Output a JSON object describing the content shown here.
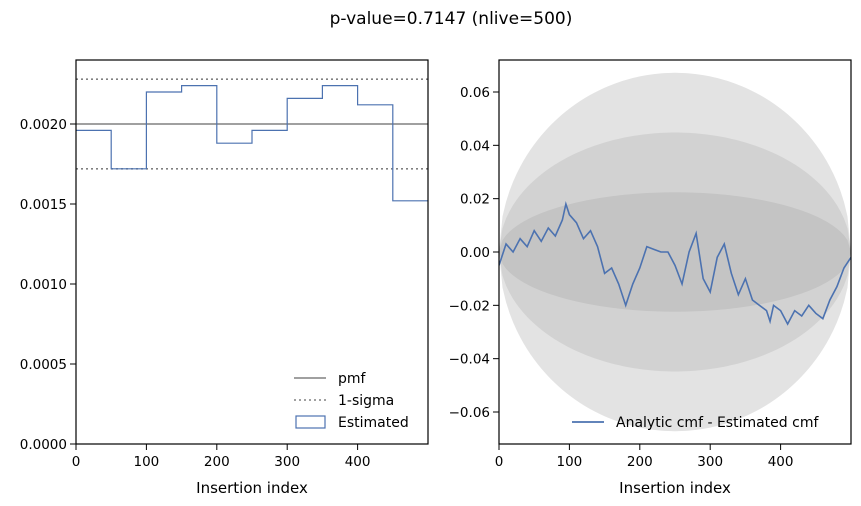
{
  "figure": {
    "suptitle": "p-value=0.7147 (nlive=500)"
  },
  "colors": {
    "estimated": "#4c72b0",
    "pmf": "#808080",
    "band_outer": "#e3e3e3",
    "band_mid": "#d2d2d2",
    "band_inner": "#c4c4c4"
  },
  "chart_data": [
    {
      "type": "line",
      "panel": "left",
      "xlabel": "Insertion index",
      "ylabel": "",
      "xlim": [
        0,
        500
      ],
      "ylim": [
        0,
        0.0024
      ],
      "xticks": [
        0,
        100,
        200,
        300,
        400
      ],
      "xtick_labels": [
        "0",
        "100",
        "200",
        "300",
        "400"
      ],
      "yticks": [
        0,
        0.0005,
        0.001,
        0.0015,
        0.002
      ],
      "ytick_labels": [
        "0.0000",
        "0.0005",
        "0.0010",
        "0.0015",
        "0.0020"
      ],
      "grid": false,
      "legend_position": "lower-right",
      "pmf": {
        "name": "pmf",
        "value": 0.002
      },
      "sigma": {
        "name": "1-sigma",
        "values": [
          0.00172,
          0.00228
        ]
      },
      "estimated": {
        "name": "Estimated",
        "bin_edges": [
          0,
          50,
          100,
          150,
          200,
          250,
          300,
          350,
          400,
          450,
          500
        ],
        "values": [
          0.00196,
          0.00172,
          0.0022,
          0.00224,
          0.00188,
          0.00196,
          0.00216,
          0.00224,
          0.00212,
          0.00152
        ]
      }
    },
    {
      "type": "line",
      "panel": "right",
      "xlabel": "Insertion index",
      "ylabel": "",
      "xlim": [
        0,
        500
      ],
      "ylim": [
        -0.072,
        0.072
      ],
      "xticks": [
        0,
        100,
        200,
        300,
        400
      ],
      "xtick_labels": [
        "0",
        "100",
        "200",
        "300",
        "400"
      ],
      "yticks": [
        -0.06,
        -0.04,
        -0.02,
        0.0,
        0.02,
        0.04,
        0.06
      ],
      "ytick_labels": [
        "−0.06",
        "−0.04",
        "−0.02",
        "0.00",
        "0.02",
        "0.04",
        "0.06"
      ],
      "grid": false,
      "legend_position": "lower-right",
      "bands": {
        "sigmas": [
          3,
          2,
          1
        ],
        "scale": 0.0224
      },
      "series": [
        {
          "name": "Analytic cmf - Estimated cmf",
          "x": [
            0,
            10,
            20,
            30,
            40,
            50,
            60,
            70,
            80,
            90,
            95,
            100,
            110,
            120,
            130,
            140,
            150,
            160,
            170,
            180,
            185,
            190,
            200,
            210,
            220,
            230,
            240,
            250,
            260,
            270,
            280,
            290,
            300,
            310,
            320,
            330,
            340,
            350,
            360,
            370,
            380,
            385,
            390,
            400,
            410,
            420,
            430,
            440,
            450,
            460,
            470,
            480,
            490,
            500
          ],
          "values": [
            -0.005,
            0.003,
            0.0,
            0.005,
            0.002,
            0.008,
            0.004,
            0.009,
            0.006,
            0.012,
            0.018,
            0.014,
            0.011,
            0.005,
            0.008,
            0.002,
            -0.008,
            -0.006,
            -0.012,
            -0.02,
            -0.016,
            -0.012,
            -0.006,
            0.002,
            0.001,
            0.0,
            0.0,
            -0.005,
            -0.012,
            0.0,
            0.007,
            -0.01,
            -0.015,
            -0.002,
            0.003,
            -0.008,
            -0.016,
            -0.01,
            -0.018,
            -0.02,
            -0.022,
            -0.026,
            -0.02,
            -0.022,
            -0.027,
            -0.022,
            -0.024,
            -0.02,
            -0.023,
            -0.025,
            -0.018,
            -0.013,
            -0.006,
            -0.002
          ]
        }
      ]
    }
  ]
}
